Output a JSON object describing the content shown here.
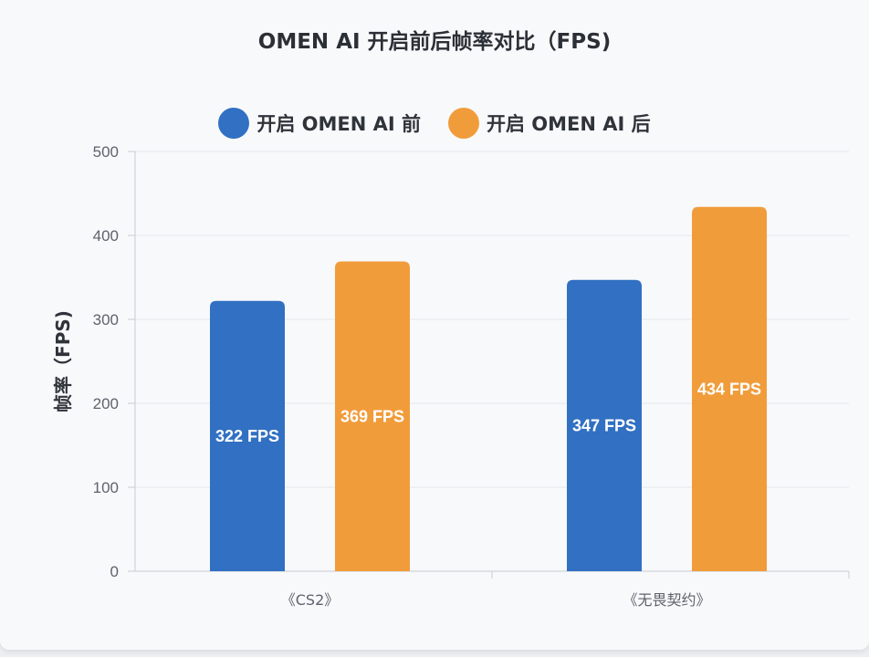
{
  "colors": {
    "before": "#3170c2",
    "after": "#f19c3b",
    "grid": "#e4e7ec",
    "axis": "#c9ccd2"
  },
  "chart_data": {
    "type": "bar",
    "title": "OMEN AI 开启前后帧率对比（FPS)",
    "ylabel": "帧率（FPS)",
    "xlabel": "",
    "ylim": [
      0,
      500
    ],
    "yticks": [
      0,
      100,
      200,
      300,
      400,
      500
    ],
    "grid": true,
    "legend_position": "top-center",
    "categories": [
      "《CS2》",
      "《无畏契约》"
    ],
    "series": [
      {
        "name": "开启 OMEN AI 前",
        "color": "#3170c2",
        "values": [
          322,
          347
        ],
        "labels": [
          "322 FPS",
          "347 FPS"
        ]
      },
      {
        "name": "开启 OMEN AI 后",
        "color": "#f19c3b",
        "values": [
          369,
          434
        ],
        "labels": [
          "369 FPS",
          "434 FPS"
        ]
      }
    ]
  }
}
